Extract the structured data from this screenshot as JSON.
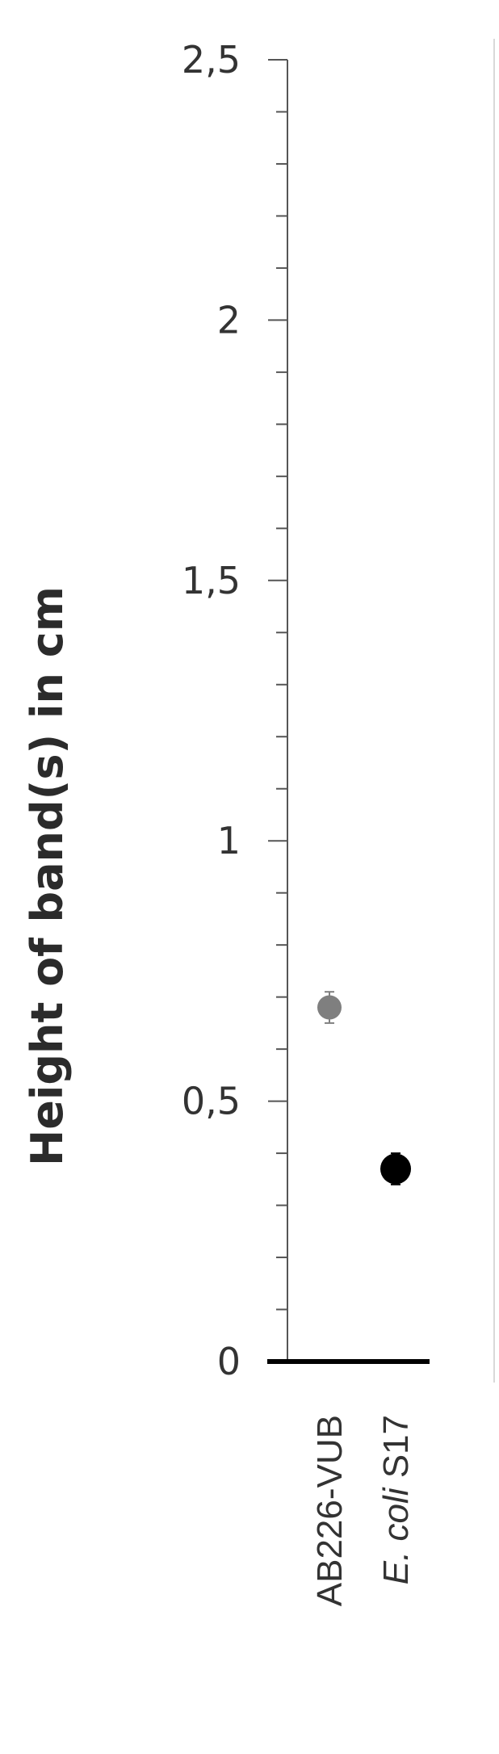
{
  "chart_data": {
    "type": "scatter",
    "ylabel": "Height of band(s) in cm",
    "xlabel": "",
    "ylim": [
      0,
      2.5
    ],
    "y_major_ticks": [
      "0",
      "0,5",
      "1",
      "1,5",
      "2",
      "2,5"
    ],
    "y_major_values": [
      0,
      0.5,
      1,
      1.5,
      2,
      2.5
    ],
    "y_minor_step": 0.1,
    "grid": false,
    "legend": "none",
    "categories": [
      {
        "italic": "",
        "text": "AB226-VUB"
      },
      {
        "italic": "E. coli",
        "text": " S17"
      }
    ],
    "series": [
      {
        "values": [
          0.68,
          0.37
        ],
        "errors": [
          0.03,
          0.03
        ],
        "colors": [
          "#7f7f7f",
          "#000000"
        ]
      }
    ],
    "colors": {
      "axis": "#000000",
      "tick_text": "#333333",
      "frame_line": "#d9d9d9"
    }
  }
}
